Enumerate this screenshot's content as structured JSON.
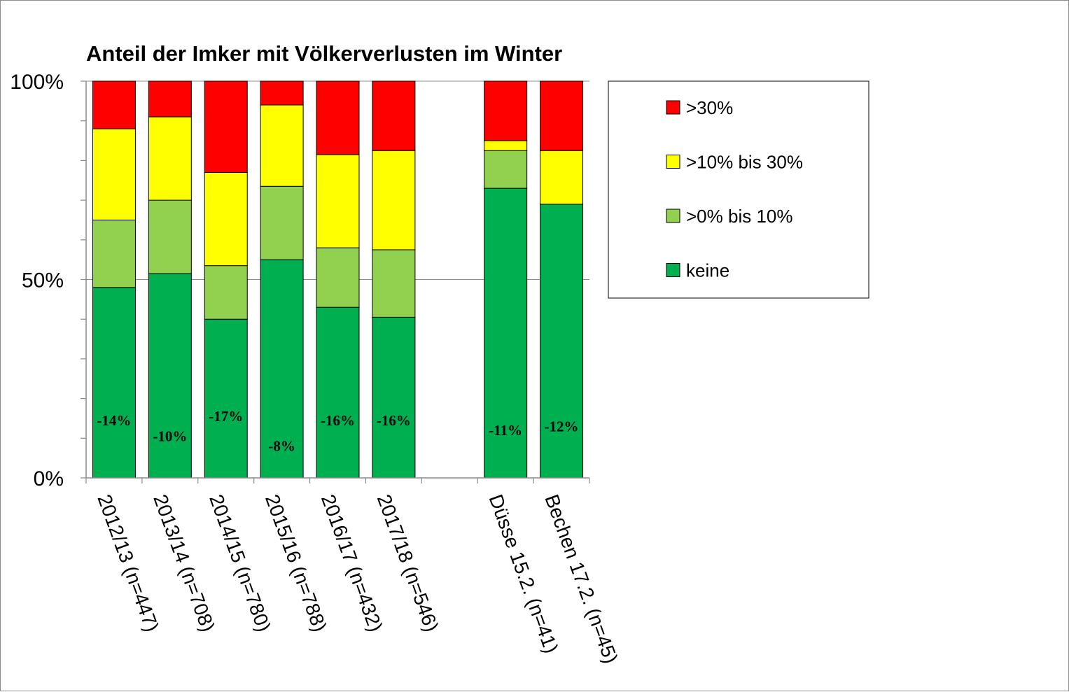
{
  "chart_data": {
    "type": "bar",
    "stacked": true,
    "percent": true,
    "title": "Anteil der Imker mit Völkerverlusten im Winter",
    "xlabel": "",
    "ylabel": "",
    "ylim": [
      0,
      100
    ],
    "yticks": [
      "0%",
      "50%",
      "100%"
    ],
    "legend_position": "right",
    "categories": [
      "2012/13 (n=447)",
      "2013/14 (n=708)",
      "2014/15 (n=780)",
      "2015/16 (n=788)",
      "2016/17 (n=432)",
      "2017/18 (n=546)",
      "",
      "Düsse 15.2. (n=41)",
      "Bechen 17.2. (n=45)"
    ],
    "series": [
      {
        "name": "keine",
        "color": "#00b050",
        "values": [
          48,
          51.5,
          40,
          55,
          43,
          40.5,
          null,
          73,
          69
        ]
      },
      {
        "name": ">0% bis 10%",
        "color": "#92d050",
        "values": [
          17,
          18.5,
          13.5,
          18.5,
          15,
          17,
          null,
          9.5,
          0
        ]
      },
      {
        "name": ">10% bis 30%",
        "color": "#ffff00",
        "values": [
          23,
          21,
          23.5,
          20.5,
          23.5,
          25,
          null,
          2.5,
          13.5
        ]
      },
      {
        "name": ">30%",
        "color": "#ff0000",
        "values": [
          12,
          9,
          23,
          6,
          18.5,
          17.5,
          null,
          15,
          17.5
        ]
      }
    ],
    "data_labels": [
      "-14%",
      "-10%",
      "-17%",
      "-8%",
      "-16%",
      "-16%",
      "",
      "-11%",
      "-12%"
    ],
    "data_label_levels": [
      14.5,
      10.5,
      15.5,
      8,
      14.5,
      14.5,
      null,
      12,
      13
    ],
    "legend_order": [
      ">30%",
      ">10% bis 30%",
      ">0% bis 10%",
      "keine"
    ]
  }
}
